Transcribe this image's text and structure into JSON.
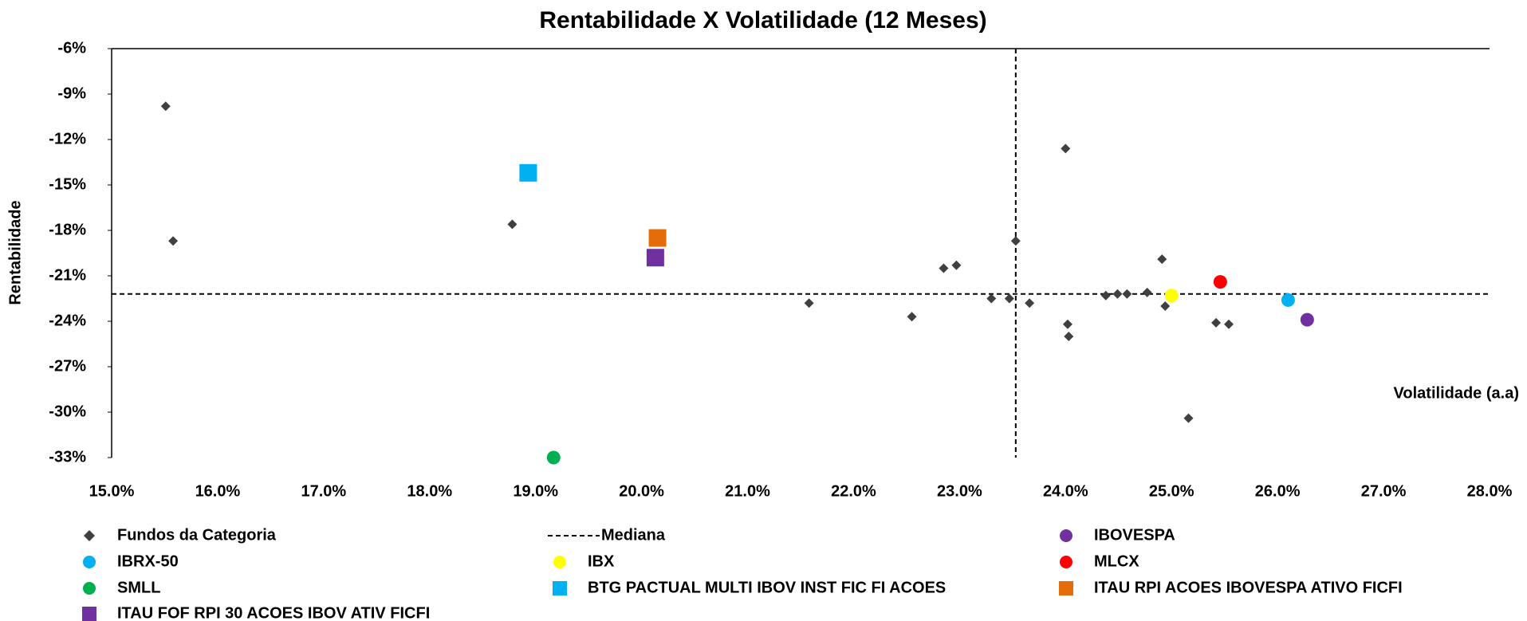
{
  "chart_data": {
    "type": "scatter",
    "title": "Rentabilidade X Volatilidade (12 Meses)",
    "xlabel": "Volatilidade (a.a)",
    "ylabel": "Rentabilidade",
    "xlim": [
      15,
      28
    ],
    "ylim": [
      -33,
      -6
    ],
    "xticks": [
      {
        "value": 15,
        "label": "15.0%"
      },
      {
        "value": 16,
        "label": "16.0%"
      },
      {
        "value": 17,
        "label": "17.0%"
      },
      {
        "value": 18,
        "label": "18.0%"
      },
      {
        "value": 19,
        "label": "19.0%"
      },
      {
        "value": 20,
        "label": "20.0%"
      },
      {
        "value": 21,
        "label": "21.0%"
      },
      {
        "value": 22,
        "label": "22.0%"
      },
      {
        "value": 23,
        "label": "23.0%"
      },
      {
        "value": 24,
        "label": "24.0%"
      },
      {
        "value": 25,
        "label": "25.0%"
      },
      {
        "value": 26,
        "label": "26.0%"
      },
      {
        "value": 27,
        "label": "27.0%"
      },
      {
        "value": 28,
        "label": "28.0%"
      }
    ],
    "yticks": [
      {
        "value": -6,
        "label": "-6%"
      },
      {
        "value": -9,
        "label": "-9%"
      },
      {
        "value": -12,
        "label": "-12%"
      },
      {
        "value": -15,
        "label": "-15%"
      },
      {
        "value": -18,
        "label": "-18%"
      },
      {
        "value": -21,
        "label": "-21%"
      },
      {
        "value": -24,
        "label": "-24%"
      },
      {
        "value": -27,
        "label": "-27%"
      },
      {
        "value": -30,
        "label": "-30%"
      },
      {
        "value": -33,
        "label": "-33%"
      }
    ],
    "median": {
      "name": "Mediana",
      "x": 23.53,
      "y": -22.2,
      "color": "#000000"
    },
    "series": [
      {
        "name": "Fundos da Categoria",
        "color": "#404040",
        "marker": "diamond",
        "x": [
          15.51,
          15.58,
          18.78,
          20.15,
          20.15,
          21.58,
          22.55,
          22.85,
          22.97,
          23.3,
          23.47,
          23.53,
          23.66,
          24.0,
          24.02,
          24.03,
          24.38,
          24.49,
          24.58,
          24.77,
          24.91,
          24.94,
          25.42,
          25.54,
          25.16
        ],
        "y": [
          -9.8,
          -18.7,
          -17.6,
          -18.3,
          -18.6,
          -22.8,
          -23.7,
          -20.5,
          -20.3,
          -22.5,
          -22.5,
          -18.7,
          -22.8,
          -12.6,
          -24.2,
          -25.0,
          -22.3,
          -22.2,
          -22.2,
          -22.1,
          -19.9,
          -23.0,
          -24.1,
          -24.2,
          -30.4
        ]
      },
      {
        "name": "IBOVESPA",
        "color": "#7030a0",
        "marker": "circle",
        "x": [
          26.28
        ],
        "y": [
          -23.9
        ]
      },
      {
        "name": "IBRX-50",
        "color": "#00b0f0",
        "marker": "circle",
        "x": [
          26.1
        ],
        "y": [
          -22.6
        ]
      },
      {
        "name": "IBX",
        "color": "#ffff00",
        "marker": "circle",
        "x": [
          25.0
        ],
        "y": [
          -22.3
        ]
      },
      {
        "name": "MLCX",
        "color": "#ff0000",
        "marker": "circle",
        "x": [
          25.46
        ],
        "y": [
          -21.4
        ]
      },
      {
        "name": "SMLL",
        "color": "#00b050",
        "marker": "circle",
        "x": [
          19.17
        ],
        "y": [
          -33.0
        ]
      },
      {
        "name": "BTG PACTUAL MULTI IBOV INST FIC FI ACOES",
        "color": "#00b0f0",
        "marker": "square",
        "x": [
          18.93
        ],
        "y": [
          -14.2
        ]
      },
      {
        "name": "ITAU RPI ACOES IBOVESPA ATIVO FICFI",
        "color": "#e46c0a",
        "marker": "square",
        "x": [
          20.15
        ],
        "y": [
          -18.5
        ]
      },
      {
        "name": "ITAU FOF RPI 30 ACOES IBOV ATIV FICFI",
        "color": "#7030a0",
        "marker": "square",
        "x": [
          20.13
        ],
        "y": [
          -19.8
        ]
      }
    ]
  }
}
